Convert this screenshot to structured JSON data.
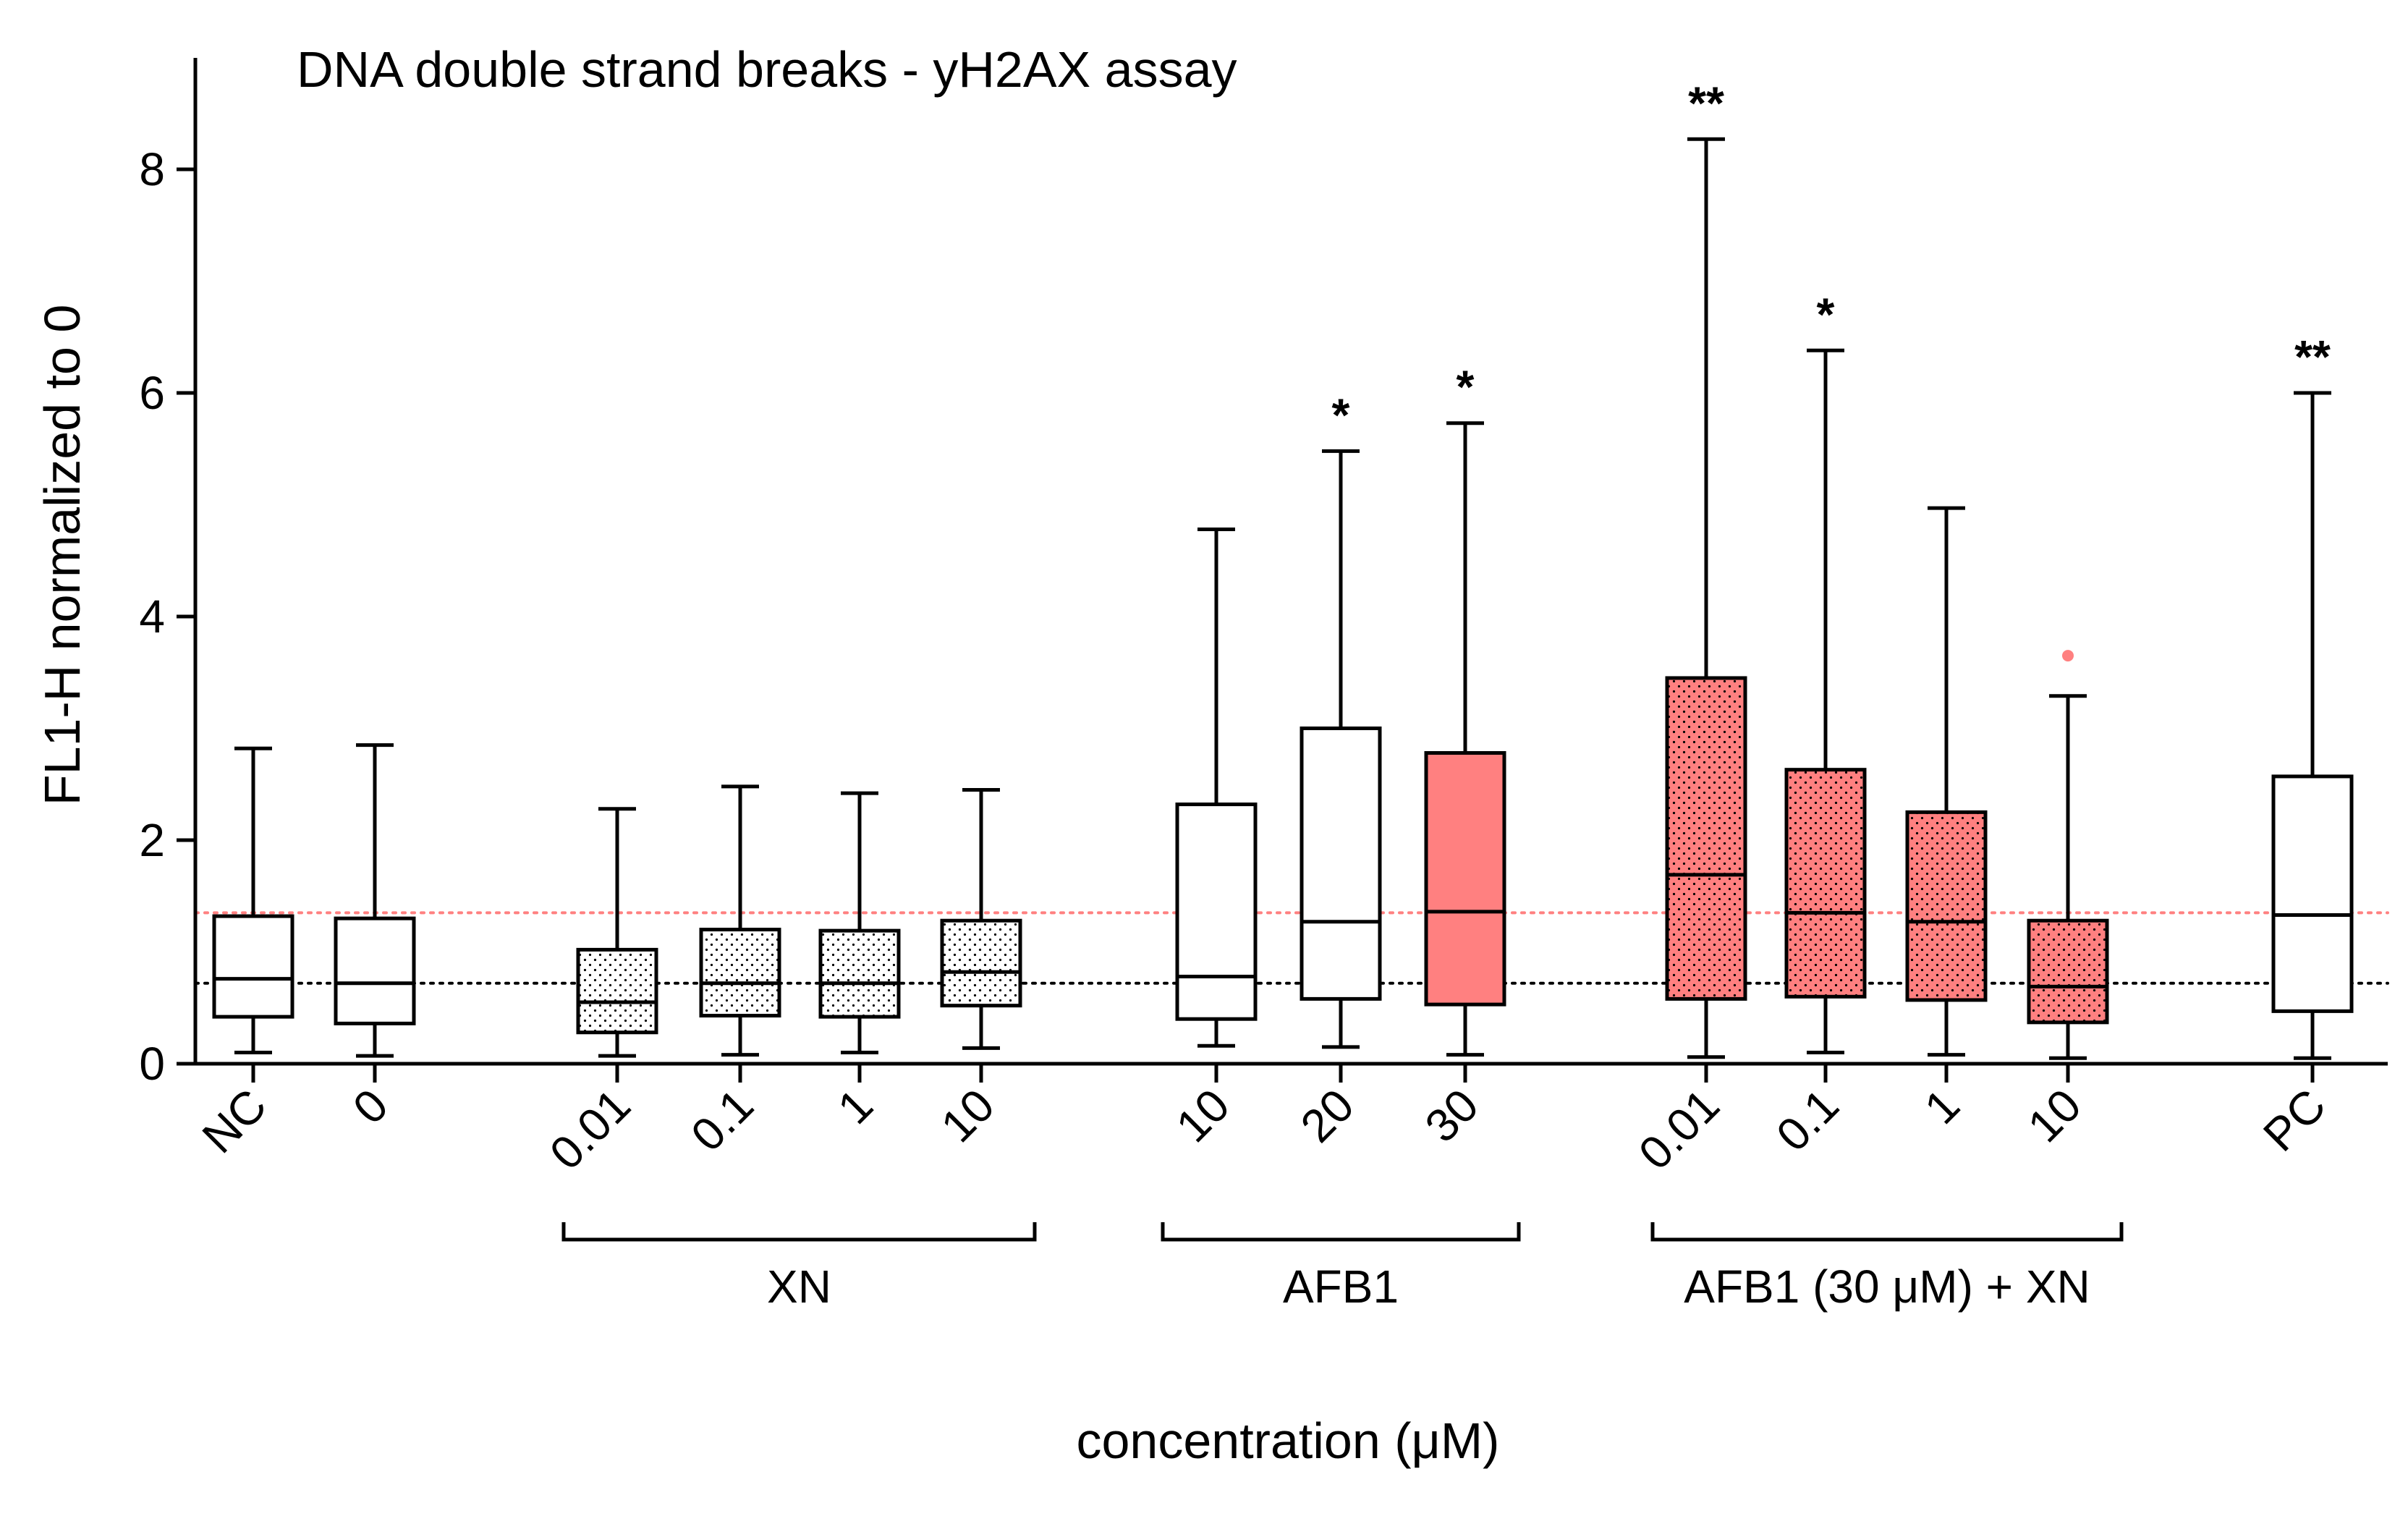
{
  "chart_data": {
    "type": "box",
    "title": "DNA double strand breaks - yH2AX assay",
    "xlabel": "concentration (μM)",
    "ylabel": "FL1-H normalized to 0",
    "ylim": [
      0,
      9
    ],
    "yticks": [
      0,
      2,
      4,
      6,
      8
    ],
    "grid": false,
    "reference_lines": [
      {
        "y": 0.72,
        "color": "#000000",
        "style": "dotted"
      },
      {
        "y": 1.35,
        "color": "#ff8080",
        "style": "dotted"
      }
    ],
    "groups": [
      {
        "label": "XN",
        "from": 2,
        "to": 5
      },
      {
        "label": "AFB1",
        "from": 6,
        "to": 8
      },
      {
        "label": "AFB1 (30 μM) + XN",
        "from": 9,
        "to": 12
      }
    ],
    "boxes": [
      {
        "label": "NC",
        "whisker_low": 0.1,
        "q1": 0.42,
        "median": 0.76,
        "q3": 1.32,
        "whisker_high": 2.82,
        "fill": "white",
        "pattern": false,
        "sig": ""
      },
      {
        "label": "0",
        "whisker_low": 0.07,
        "q1": 0.36,
        "median": 0.72,
        "q3": 1.3,
        "whisker_high": 2.85,
        "fill": "white",
        "pattern": false,
        "sig": ""
      },
      {
        "label": "0.01",
        "whisker_low": 0.07,
        "q1": 0.28,
        "median": 0.55,
        "q3": 1.02,
        "whisker_high": 2.28,
        "fill": "white",
        "pattern": true,
        "sig": ""
      },
      {
        "label": "0.1",
        "whisker_low": 0.08,
        "q1": 0.43,
        "median": 0.72,
        "q3": 1.2,
        "whisker_high": 2.48,
        "fill": "white",
        "pattern": true,
        "sig": ""
      },
      {
        "label": "1",
        "whisker_low": 0.1,
        "q1": 0.42,
        "median": 0.72,
        "q3": 1.19,
        "whisker_high": 2.42,
        "fill": "white",
        "pattern": true,
        "sig": ""
      },
      {
        "label": "10",
        "whisker_low": 0.14,
        "q1": 0.52,
        "median": 0.82,
        "q3": 1.28,
        "whisker_high": 2.45,
        "fill": "white",
        "pattern": true,
        "sig": ""
      },
      {
        "label": "10",
        "whisker_low": 0.16,
        "q1": 0.4,
        "median": 0.78,
        "q3": 2.32,
        "whisker_high": 4.78,
        "fill": "white",
        "pattern": false,
        "sig": ""
      },
      {
        "label": "20",
        "whisker_low": 0.15,
        "q1": 0.58,
        "median": 1.27,
        "q3": 3.0,
        "whisker_high": 5.48,
        "fill": "white",
        "pattern": false,
        "sig": "*"
      },
      {
        "label": "30",
        "whisker_low": 0.08,
        "q1": 0.53,
        "median": 1.36,
        "q3": 2.78,
        "whisker_high": 5.73,
        "fill": "#ff8080",
        "pattern": false,
        "sig": "*"
      },
      {
        "label": "0.01",
        "whisker_low": 0.06,
        "q1": 0.58,
        "median": 1.69,
        "q3": 3.45,
        "whisker_high": 8.27,
        "fill": "#ff8080",
        "pattern": true,
        "sig": "**"
      },
      {
        "label": "0.1",
        "whisker_low": 0.1,
        "q1": 0.6,
        "median": 1.35,
        "q3": 2.63,
        "whisker_high": 6.38,
        "fill": "#ff8080",
        "pattern": true,
        "sig": "*"
      },
      {
        "label": "1",
        "whisker_low": 0.08,
        "q1": 0.57,
        "median": 1.27,
        "q3": 2.25,
        "whisker_high": 4.97,
        "fill": "#ff8080",
        "pattern": true,
        "sig": ""
      },
      {
        "label": "10",
        "whisker_low": 0.05,
        "q1": 0.37,
        "median": 0.69,
        "q3": 1.28,
        "whisker_high": 3.29,
        "fill": "#ff8080",
        "pattern": true,
        "sig": "",
        "outliers": [
          3.65
        ]
      },
      {
        "label": "PC",
        "whisker_low": 0.05,
        "q1": 0.47,
        "median": 1.33,
        "q3": 2.57,
        "whisker_high": 6.0,
        "fill": "white",
        "pattern": false,
        "sig": "**"
      }
    ]
  }
}
